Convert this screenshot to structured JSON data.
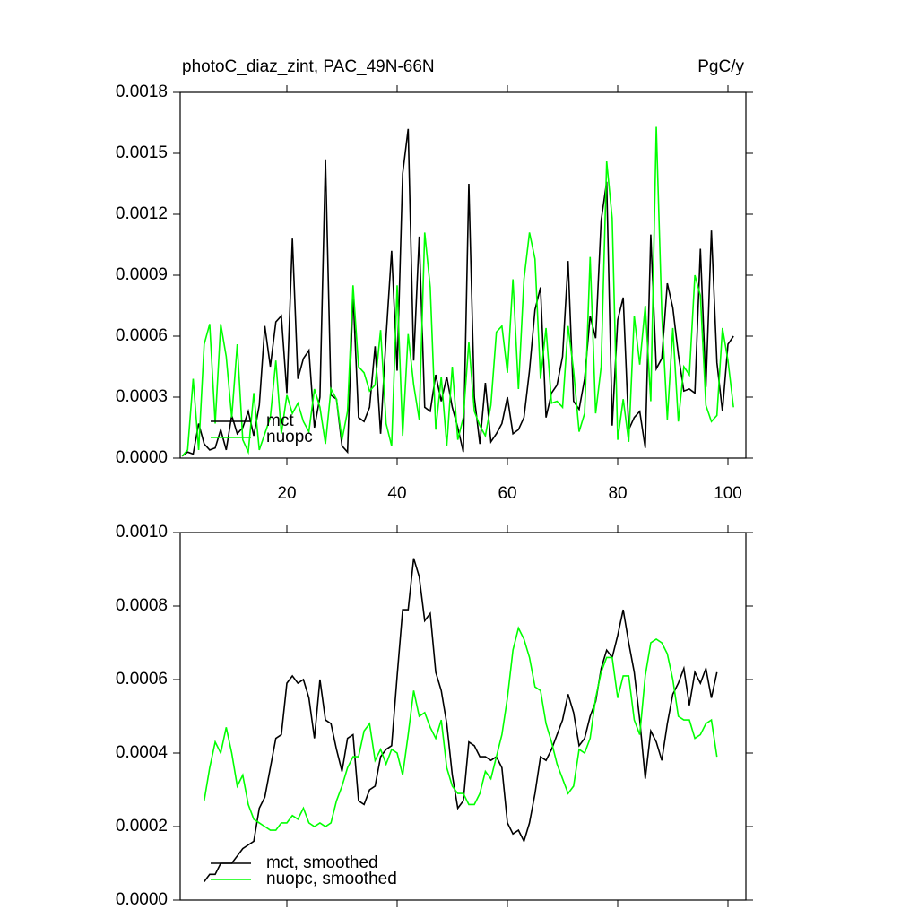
{
  "chart_data": [
    {
      "type": "line",
      "title": "photoC_diaz_zint, PAC_49N-66N",
      "units": "PgC/y",
      "x": [
        1,
        2,
        3,
        4,
        5,
        6,
        7,
        8,
        9,
        10,
        11,
        12,
        13,
        14,
        15,
        16,
        17,
        18,
        19,
        20,
        21,
        22,
        23,
        24,
        25,
        26,
        27,
        28,
        29,
        30,
        31,
        32,
        33,
        34,
        35,
        36,
        37,
        38,
        39,
        40,
        41,
        42,
        43,
        44,
        45,
        46,
        47,
        48,
        49,
        50,
        51,
        52,
        53,
        54,
        55,
        56,
        57,
        58,
        59,
        60,
        61,
        62,
        63,
        64,
        65,
        66,
        67,
        68,
        69,
        70,
        71,
        72,
        73,
        74,
        75,
        76,
        77,
        78,
        79,
        80,
        81,
        82,
        83,
        84,
        85,
        86,
        87,
        88,
        89,
        90,
        91,
        92,
        93,
        94,
        95,
        96,
        97,
        98,
        99,
        100,
        101
      ],
      "series": [
        {
          "name": "mct",
          "color": "#000000",
          "values": [
            1e-05,
            3e-05,
            2e-05,
            0.00017,
            7e-05,
            4e-05,
            5e-05,
            0.00014,
            4e-05,
            0.00021,
            0.00012,
            0.00015,
            0.00023,
            0.00011,
            0.00026,
            0.00065,
            0.00045,
            0.00067,
            0.0007,
            0.00032,
            0.00108,
            0.00039,
            0.00049,
            0.00053,
            0.00015,
            0.0003,
            0.00147,
            0.00031,
            0.00029,
            6e-05,
            3e-05,
            0.00081,
            0.0002,
            0.00018,
            0.00025,
            0.00055,
            0.00012,
            0.0006,
            0.00102,
            0.00043,
            0.0014,
            0.00162,
            0.00048,
            0.00109,
            0.00025,
            0.00023,
            0.00041,
            0.00028,
            0.0004,
            0.00025,
            0.00015,
            3e-05,
            0.00135,
            0.0003,
            7e-05,
            0.00037,
            8e-05,
            0.00012,
            0.00017,
            0.0003,
            0.00012,
            0.00014,
            0.0002,
            0.00043,
            0.00073,
            0.00084,
            0.0002,
            0.00032,
            0.00036,
            0.0005,
            0.00097,
            0.00028,
            0.00024,
            0.00039,
            0.0007,
            0.00059,
            0.00117,
            0.00136,
            0.00016,
            0.00068,
            0.00079,
            0.00014,
            0.0002,
            0.00023,
            5e-05,
            0.0011,
            0.00044,
            0.00049,
            0.00086,
            0.00074,
            0.00051,
            0.00033,
            0.00034,
            0.00032,
            0.00103,
            0.00035,
            0.00112,
            0.00047,
            0.00023,
            0.00056,
            0.0006
          ]
        },
        {
          "name": "nuopc",
          "color": "#00ff00",
          "values": [
            1e-05,
            4e-05,
            0.00039,
            4e-05,
            0.00056,
            0.00066,
            0.00017,
            0.00066,
            0.0005,
            0.0002,
            0.00056,
            9e-05,
            3e-05,
            0.00032,
            4e-05,
            0.00012,
            0.0002,
            0.00048,
            0.00012,
            0.00031,
            0.00022,
            0.00027,
            0.00018,
            0.00013,
            0.00034,
            0.00025,
            7e-05,
            0.00034,
            0.00029,
            9e-05,
            0.00023,
            0.00085,
            0.00045,
            0.00042,
            0.00033,
            0.00036,
            0.00063,
            0.00017,
            6e-05,
            0.00085,
            0.00011,
            0.00061,
            0.00036,
            0.00019,
            0.00111,
            0.00084,
            0.00014,
            0.0004,
            6e-05,
            0.00045,
            9e-05,
            0.0002,
            0.00057,
            0.00023,
            0.00016,
            0.00011,
            0.00026,
            0.00062,
            0.00065,
            0.00042,
            0.00088,
            0.00034,
            0.00088,
            0.00111,
            0.00098,
            0.00039,
            0.00064,
            0.00027,
            0.00028,
            0.00025,
            0.00065,
            0.00043,
            0.00013,
            0.00022,
            0.00099,
            0.00022,
            0.00045,
            0.00146,
            0.00118,
            9e-05,
            0.00029,
            8e-05,
            0.0007,
            0.00046,
            0.00075,
            0.00028,
            0.00163,
            0.00071,
            0.00019,
            0.00064,
            0.00018,
            0.00045,
            0.00041,
            0.0009,
            0.0008,
            0.00026,
            0.00018,
            0.00021,
            0.00064,
            0.00048,
            0.00025
          ]
        }
      ],
      "xlim": [
        0.65,
        103.25
      ],
      "xticks": [
        20,
        40,
        60,
        80,
        100
      ],
      "xtick_labels": true,
      "ylim": [
        0,
        0.0018
      ],
      "yticks": [
        {
          "value": 0,
          "label": "0.0000"
        },
        {
          "value": 0.0003,
          "label": "0.0003"
        },
        {
          "value": 0.0006,
          "label": "0.0006"
        },
        {
          "value": 0.0009,
          "label": "0.0009"
        },
        {
          "value": 0.0012,
          "label": "0.0012"
        },
        {
          "value": 0.0015,
          "label": "0.0015"
        },
        {
          "value": 0.0018,
          "label": "0.0018"
        }
      ],
      "legend": "lower left"
    },
    {
      "type": "line",
      "x": [
        5,
        6,
        7,
        8,
        9,
        10,
        11,
        12,
        13,
        14,
        15,
        16,
        17,
        18,
        19,
        20,
        21,
        22,
        23,
        24,
        25,
        26,
        27,
        28,
        29,
        30,
        31,
        32,
        33,
        34,
        35,
        36,
        37,
        38,
        39,
        40,
        41,
        42,
        43,
        44,
        45,
        46,
        47,
        48,
        49,
        50,
        51,
        52,
        53,
        54,
        55,
        56,
        57,
        58,
        59,
        60,
        61,
        62,
        63,
        64,
        65,
        66,
        67,
        68,
        69,
        70,
        71,
        72,
        73,
        74,
        75,
        76,
        77,
        78,
        79,
        80,
        81,
        82,
        83,
        84,
        85,
        86,
        87,
        88,
        89,
        90,
        91,
        92,
        93,
        94,
        95,
        96,
        97,
        98
      ],
      "series": [
        {
          "name": "mct, smoothed",
          "color": "#000000",
          "values": [
            5e-05,
            7e-05,
            7e-05,
            0.0001,
            0.0001,
            0.0001,
            0.00012,
            0.00014,
            0.00015,
            0.00016,
            0.00025,
            0.00028,
            0.00036,
            0.00044,
            0.00045,
            0.00059,
            0.00061,
            0.00059,
            0.0006,
            0.00055,
            0.00044,
            0.0006,
            0.00049,
            0.00048,
            0.00041,
            0.00035,
            0.00044,
            0.00045,
            0.00027,
            0.00026,
            0.0003,
            0.00031,
            0.00039,
            0.00041,
            0.00042,
            0.00061,
            0.00079,
            0.00079,
            0.00093,
            0.00088,
            0.00076,
            0.00078,
            0.00062,
            0.00057,
            0.00048,
            0.00034,
            0.00025,
            0.00027,
            0.00043,
            0.00042,
            0.00039,
            0.00039,
            0.00038,
            0.00039,
            0.00036,
            0.00021,
            0.00018,
            0.00019,
            0.00016,
            0.00021,
            0.00029,
            0.00039,
            0.00038,
            0.00041,
            0.00045,
            0.00049,
            0.00056,
            0.00051,
            0.00042,
            0.00044,
            0.0005,
            0.00054,
            0.00063,
            0.00068,
            0.00066,
            0.00072,
            0.00079,
            0.0007,
            0.00062,
            0.00049,
            0.00033,
            0.00046,
            0.00043,
            0.00038,
            0.00048,
            0.00056,
            0.00059,
            0.00063,
            0.00053,
            0.00062,
            0.00059,
            0.00063,
            0.00055,
            0.00062
          ]
        },
        {
          "name": "nuopc, smoothed",
          "color": "#00ff00",
          "values": [
            0.00027,
            0.00036,
            0.00043,
            0.0004,
            0.00047,
            0.0004,
            0.00031,
            0.00034,
            0.00026,
            0.00022,
            0.00021,
            0.0002,
            0.00019,
            0.00019,
            0.00021,
            0.00021,
            0.00023,
            0.00022,
            0.00025,
            0.00021,
            0.0002,
            0.00021,
            0.0002,
            0.00021,
            0.00027,
            0.00031,
            0.00036,
            0.00039,
            0.00039,
            0.00046,
            0.00048,
            0.00038,
            0.00041,
            0.00037,
            0.00041,
            0.0004,
            0.00034,
            0.00045,
            0.00057,
            0.0005,
            0.00051,
            0.00047,
            0.00044,
            0.00049,
            0.00036,
            0.00031,
            0.00029,
            0.00029,
            0.00026,
            0.00026,
            0.00029,
            0.00035,
            0.00033,
            0.00039,
            0.00045,
            0.00055,
            0.00068,
            0.00074,
            0.00071,
            0.00066,
            0.00058,
            0.00057,
            0.00048,
            0.00043,
            0.00037,
            0.00033,
            0.00029,
            0.00031,
            0.00041,
            0.0004,
            0.00044,
            0.00055,
            0.00062,
            0.00066,
            0.00066,
            0.00055,
            0.00061,
            0.00061,
            0.00049,
            0.00045,
            0.00061,
            0.0007,
            0.00071,
            0.0007,
            0.00067,
            0.0006,
            0.0005,
            0.00049,
            0.00049,
            0.00044,
            0.00045,
            0.00048,
            0.00049,
            0.00039
          ]
        }
      ],
      "xlim": [
        0.65,
        103.25
      ],
      "xticks": [
        20,
        40,
        60,
        80,
        100
      ],
      "xtick_labels": false,
      "ylim": [
        0,
        0.001
      ],
      "yticks": [
        {
          "value": 0,
          "label": "0.0000"
        },
        {
          "value": 0.0002,
          "label": "0.0002"
        },
        {
          "value": 0.0004,
          "label": "0.0004"
        },
        {
          "value": 0.0006,
          "label": "0.0006"
        },
        {
          "value": 0.0008,
          "label": "0.0008"
        },
        {
          "value": 0.001,
          "label": "0.0010"
        }
      ],
      "legend": "lower left"
    }
  ]
}
